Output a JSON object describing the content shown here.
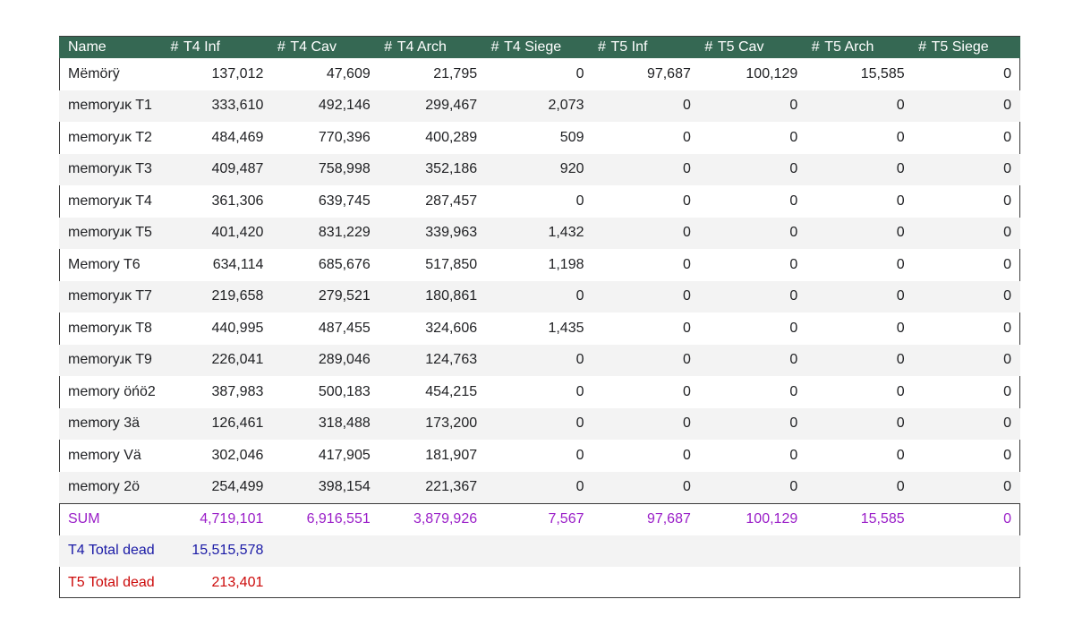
{
  "table": {
    "header": {
      "name": "Name",
      "hash": "#",
      "columns": [
        "T4 Inf",
        "T4 Cav",
        "T4 Arch",
        "T4 Siege",
        "T5 Inf",
        "T5 Cav",
        "T5 Arch",
        "T5 Siege"
      ]
    },
    "rows": [
      {
        "name": "Mëmörÿ",
        "values": [
          "137,012",
          "47,609",
          "21,795",
          "0",
          "97,687",
          "100,129",
          "15,585",
          "0"
        ]
      },
      {
        "name": "memoryɹĸ T1",
        "values": [
          "333,610",
          "492,146",
          "299,467",
          "2,073",
          "0",
          "0",
          "0",
          "0"
        ]
      },
      {
        "name": "memoryɹĸ T2",
        "values": [
          "484,469",
          "770,396",
          "400,289",
          "509",
          "0",
          "0",
          "0",
          "0"
        ]
      },
      {
        "name": "memoryɹĸ T3",
        "values": [
          "409,487",
          "758,998",
          "352,186",
          "920",
          "0",
          "0",
          "0",
          "0"
        ]
      },
      {
        "name": "memoryɹĸ T4",
        "values": [
          "361,306",
          "639,745",
          "287,457",
          "0",
          "0",
          "0",
          "0",
          "0"
        ]
      },
      {
        "name": "memoryɹĸ T5",
        "values": [
          "401,420",
          "831,229",
          "339,963",
          "1,432",
          "0",
          "0",
          "0",
          "0"
        ]
      },
      {
        "name": "Memory T6",
        "values": [
          "634,114",
          "685,676",
          "517,850",
          "1,198",
          "0",
          "0",
          "0",
          "0"
        ]
      },
      {
        "name": "memoryɹĸ T7",
        "values": [
          "219,658",
          "279,521",
          "180,861",
          "0",
          "0",
          "0",
          "0",
          "0"
        ]
      },
      {
        "name": "memoryɹĸ T8",
        "values": [
          "440,995",
          "487,455",
          "324,606",
          "1,435",
          "0",
          "0",
          "0",
          "0"
        ]
      },
      {
        "name": "memoryɹĸ T9",
        "values": [
          "226,041",
          "289,046",
          "124,763",
          "0",
          "0",
          "0",
          "0",
          "0"
        ]
      },
      {
        "name": "memory öńö2",
        "values": [
          "387,983",
          "500,183",
          "454,215",
          "0",
          "0",
          "0",
          "0",
          "0"
        ]
      },
      {
        "name": "memory 3ä",
        "values": [
          "126,461",
          "318,488",
          "173,200",
          "0",
          "0",
          "0",
          "0",
          "0"
        ]
      },
      {
        "name": "memory Vä",
        "values": [
          "302,046",
          "417,905",
          "181,907",
          "0",
          "0",
          "0",
          "0",
          "0"
        ]
      },
      {
        "name": "memory 2ö",
        "values": [
          "254,499",
          "398,154",
          "221,367",
          "0",
          "0",
          "0",
          "0",
          "0"
        ]
      }
    ],
    "sum": {
      "label": "SUM",
      "values": [
        "4,719,101",
        "6,916,551",
        "3,879,926",
        "7,567",
        "97,687",
        "100,129",
        "15,585",
        "0"
      ]
    },
    "t4_total": {
      "label": "T4 Total dead",
      "value": "15,515,578"
    },
    "t5_total": {
      "label": "T5 Total dead",
      "value": "213,401"
    }
  },
  "colors": {
    "header_bg": "#356853",
    "sum": "#9a1ec8",
    "t4_total": "#1a1aa6",
    "t5_total": "#cc0a0a",
    "stripe": "#f3f3f3"
  }
}
